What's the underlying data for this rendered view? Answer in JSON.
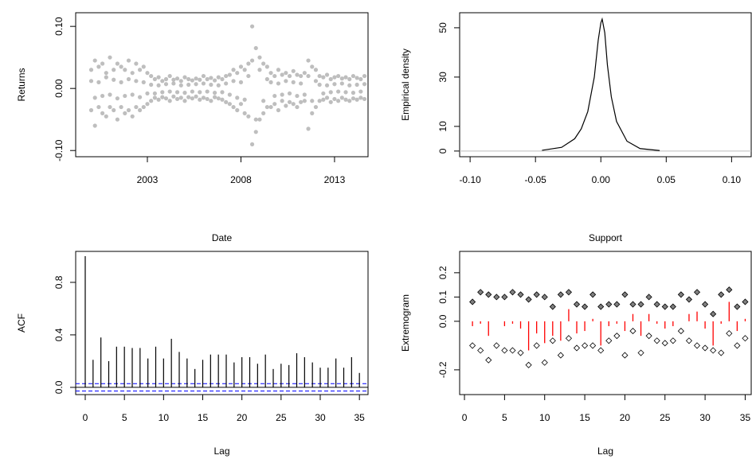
{
  "chart_data": [
    {
      "type": "scatter",
      "ylabel": "Returns",
      "xlabel": "Date",
      "color": "#bebebe",
      "x": [
        2000.0,
        2000.2,
        2000.4,
        2000.6,
        2000.8,
        2001.0,
        2001.2,
        2001.4,
        2001.6,
        2001.8,
        2002.0,
        2002.2,
        2002.4,
        2002.6,
        2002.8,
        2003.0,
        2003.2,
        2003.4,
        2003.6,
        2003.8,
        2004.0,
        2004.2,
        2004.4,
        2004.6,
        2004.8,
        2005.0,
        2005.2,
        2005.4,
        2005.6,
        2005.8,
        2006.0,
        2006.2,
        2006.4,
        2006.6,
        2006.8,
        2007.0,
        2007.2,
        2007.4,
        2007.6,
        2007.8,
        2008.0,
        2008.2,
        2008.4,
        2008.6,
        2008.8,
        2009.0,
        2009.2,
        2009.4,
        2009.6,
        2009.8,
        2010.0,
        2010.2,
        2010.4,
        2010.6,
        2010.8,
        2011.0,
        2011.2,
        2011.4,
        2011.6,
        2011.8,
        2012.0,
        2012.2,
        2012.4,
        2012.6,
        2012.8,
        2013.0,
        2013.2,
        2013.4,
        2013.6,
        2013.8,
        2014.0,
        2014.2,
        2014.4,
        2014.6
      ],
      "series": [
        {
          "values": [
            0.03,
            0.045,
            0.035,
            0.04,
            0.025,
            0.05,
            0.03,
            0.04,
            0.035,
            0.03,
            0.045,
            0.025,
            0.04,
            0.03,
            0.035,
            0.025,
            0.02,
            0.015,
            0.018,
            0.012,
            0.015,
            0.02,
            0.014,
            0.016,
            0.012,
            0.018,
            0.015,
            0.013,
            0.016,
            0.014,
            0.02,
            0.015,
            0.017,
            0.013,
            0.018,
            0.015,
            0.02,
            0.022,
            0.03,
            0.025,
            0.035,
            0.03,
            0.04,
            0.1,
            0.065,
            0.05,
            0.04,
            0.035,
            0.025,
            0.02,
            0.03,
            0.022,
            0.025,
            0.02,
            0.028,
            0.022,
            0.02,
            0.025,
            0.045,
            0.035,
            0.03,
            0.02,
            0.018,
            0.022,
            0.015,
            0.018,
            0.02,
            0.016,
            0.018,
            0.015,
            0.02,
            0.017,
            0.015,
            0.02
          ]
        },
        {
          "values": [
            -0.035,
            -0.06,
            -0.03,
            -0.04,
            -0.045,
            -0.03,
            -0.035,
            -0.05,
            -0.03,
            -0.04,
            -0.035,
            -0.045,
            -0.03,
            -0.035,
            -0.03,
            -0.025,
            -0.02,
            -0.015,
            -0.018,
            -0.014,
            -0.016,
            -0.02,
            -0.013,
            -0.017,
            -0.015,
            -0.02,
            -0.014,
            -0.016,
            -0.013,
            -0.018,
            -0.015,
            -0.017,
            -0.02,
            -0.014,
            -0.016,
            -0.018,
            -0.022,
            -0.025,
            -0.03,
            -0.035,
            -0.025,
            -0.04,
            -0.045,
            -0.09,
            -0.07,
            -0.05,
            -0.04,
            -0.03,
            -0.03,
            -0.025,
            -0.035,
            -0.02,
            -0.028,
            -0.022,
            -0.025,
            -0.03,
            -0.022,
            -0.02,
            -0.065,
            -0.04,
            -0.03,
            -0.02,
            -0.018,
            -0.015,
            -0.022,
            -0.017,
            -0.02,
            -0.015,
            -0.018,
            -0.02,
            -0.016,
            -0.018,
            -0.015,
            -0.017
          ]
        },
        {
          "values": [
            0.012,
            -0.015,
            0.01,
            -0.012,
            0.018,
            -0.01,
            0.014,
            -0.016,
            0.01,
            -0.012,
            0.015,
            -0.01,
            0.012,
            -0.014,
            0.01,
            -0.008,
            0.006,
            -0.008,
            0.005,
            -0.006,
            0.007,
            -0.005,
            0.008,
            -0.006,
            0.005,
            -0.007,
            0.006,
            -0.005,
            0.007,
            -0.006,
            0.008,
            -0.005,
            0.006,
            -0.007,
            0.005,
            -0.006,
            0.008,
            -0.01,
            0.012,
            -0.015,
            0.01,
            -0.018,
            0.02,
            0.045,
            -0.05,
            0.03,
            -0.02,
            0.015,
            0.01,
            -0.012,
            0.008,
            -0.01,
            0.012,
            -0.008,
            0.01,
            -0.012,
            0.008,
            -0.01,
            0.02,
            -0.02,
            0.012,
            0.006,
            -0.008,
            0.005,
            -0.006,
            0.007,
            -0.005,
            0.008,
            -0.006,
            0.005,
            -0.007,
            0.006,
            -0.005,
            0.007
          ]
        }
      ],
      "xlim": [
        1999.17,
        2014.79
      ],
      "xticks": [
        2003,
        2008,
        2013
      ],
      "ylim": [
        -0.11,
        0.122
      ],
      "yticks": [
        {
          "value": -0.1,
          "label": "-0.10"
        },
        {
          "value": 0,
          "label": "0.00"
        },
        {
          "value": 0.1,
          "label": "0.10"
        }
      ]
    },
    {
      "type": "line",
      "ylabel": "Empirical density",
      "xlabel": "Support",
      "color": "#000000",
      "baseline_color": "#bebebe",
      "x": [
        -0.045,
        -0.03,
        -0.02,
        -0.015,
        -0.01,
        -0.005,
        -0.002,
        0.0,
        0.001,
        0.003,
        0.005,
        0.008,
        0.012,
        0.02,
        0.03,
        0.045
      ],
      "values": [
        0.3,
        1.5,
        5,
        9,
        16,
        30,
        45,
        52,
        53.5,
        48,
        35,
        22,
        12,
        4,
        1,
        0.2
      ],
      "xlim": [
        -0.108,
        0.115
      ],
      "xticks": [
        {
          "value": -0.1,
          "label": "-0.10"
        },
        -0.05,
        {
          "value": 0,
          "label": "0.00"
        },
        0.05,
        {
          "value": 0.1,
          "label": "0.10"
        }
      ],
      "ylim": [
        -2.3,
        56.1
      ],
      "yticks": [
        0,
        10,
        30,
        50
      ]
    },
    {
      "type": "bar",
      "ylabel": "ACF",
      "xlabel": "Lag",
      "color": "#000000",
      "hline_color": "#0000ff",
      "x": [
        0,
        1,
        2,
        3,
        4,
        5,
        6,
        7,
        8,
        9,
        10,
        11,
        12,
        13,
        14,
        15,
        16,
        17,
        18,
        19,
        20,
        21,
        22,
        23,
        24,
        25,
        26,
        27,
        28,
        29,
        30,
        31,
        32,
        33,
        34,
        35
      ],
      "values": [
        1.0,
        0.21,
        0.38,
        0.2,
        0.31,
        0.31,
        0.3,
        0.3,
        0.22,
        0.31,
        0.22,
        0.37,
        0.27,
        0.22,
        0.14,
        0.21,
        0.25,
        0.25,
        0.25,
        0.19,
        0.23,
        0.23,
        0.18,
        0.25,
        0.14,
        0.18,
        0.17,
        0.26,
        0.23,
        0.19,
        0.15,
        0.15,
        0.22,
        0.15,
        0.23,
        0.11
      ],
      "hlines": [
        0.028,
        -0.028
      ],
      "xlim": [
        -1.22,
        36.1
      ],
      "xticks": [
        0,
        5,
        10,
        15,
        20,
        25,
        30,
        35
      ],
      "ylim": [
        -0.055,
        1.036
      ],
      "yticks": [
        {
          "value": 0,
          "label": "0.0"
        },
        0.4,
        0.8
      ]
    },
    {
      "type": "extremogram",
      "ylabel": "Extremogram",
      "xlabel": "Lag",
      "x": [
        1,
        2,
        3,
        4,
        5,
        6,
        7,
        8,
        9,
        10,
        11,
        12,
        13,
        14,
        15,
        16,
        17,
        18,
        19,
        20,
        21,
        22,
        23,
        24,
        25,
        26,
        27,
        28,
        29,
        30,
        31,
        32,
        33,
        34,
        35
      ],
      "series": [
        {
          "color": "#808080",
          "marker": "filled",
          "values": [
            0.08,
            0.12,
            0.11,
            0.1,
            0.1,
            0.12,
            0.11,
            0.09,
            0.11,
            0.1,
            0.06,
            0.11,
            0.12,
            0.07,
            0.06,
            0.11,
            0.06,
            0.07,
            0.07,
            0.11,
            0.07,
            0.07,
            0.1,
            0.07,
            0.06,
            0.06,
            0.11,
            0.09,
            0.12,
            0.07,
            0.03,
            0.11,
            0.13,
            0.06,
            0.08
          ]
        },
        {
          "color": "#000000",
          "marker": "open",
          "values": [
            -0.1,
            -0.12,
            -0.16,
            -0.1,
            -0.12,
            -0.12,
            -0.13,
            -0.18,
            -0.1,
            -0.17,
            -0.08,
            -0.14,
            -0.07,
            -0.11,
            -0.1,
            -0.1,
            -0.12,
            -0.08,
            -0.06,
            -0.14,
            -0.04,
            -0.13,
            -0.06,
            -0.08,
            -0.09,
            -0.08,
            -0.04,
            -0.08,
            -0.1,
            -0.11,
            -0.12,
            -0.13,
            -0.05,
            -0.1,
            -0.07
          ]
        },
        {
          "color": "#ff0000",
          "marker": "bar",
          "values": [
            -0.02,
            -0.01,
            -0.06,
            0,
            -0.02,
            -0.01,
            -0.03,
            -0.12,
            -0.05,
            -0.09,
            -0.06,
            -0.08,
            0.05,
            -0.05,
            -0.04,
            0.01,
            -0.1,
            -0.02,
            -0.01,
            -0.04,
            0.03,
            -0.06,
            0.03,
            -0.01,
            -0.03,
            -0.02,
            0,
            0.03,
            0.04,
            -0.03,
            -0.1,
            -0.01,
            0.08,
            -0.04,
            0.01
          ]
        }
      ],
      "xlim": [
        -0.6,
        35.75
      ],
      "xticks": [
        0,
        5,
        10,
        15,
        20,
        25,
        30,
        35
      ],
      "ylim": [
        -0.302,
        0.288
      ],
      "yticks": [
        -0.2,
        {
          "value": 0,
          "label": "0.0"
        },
        0.1,
        0.2
      ]
    }
  ]
}
